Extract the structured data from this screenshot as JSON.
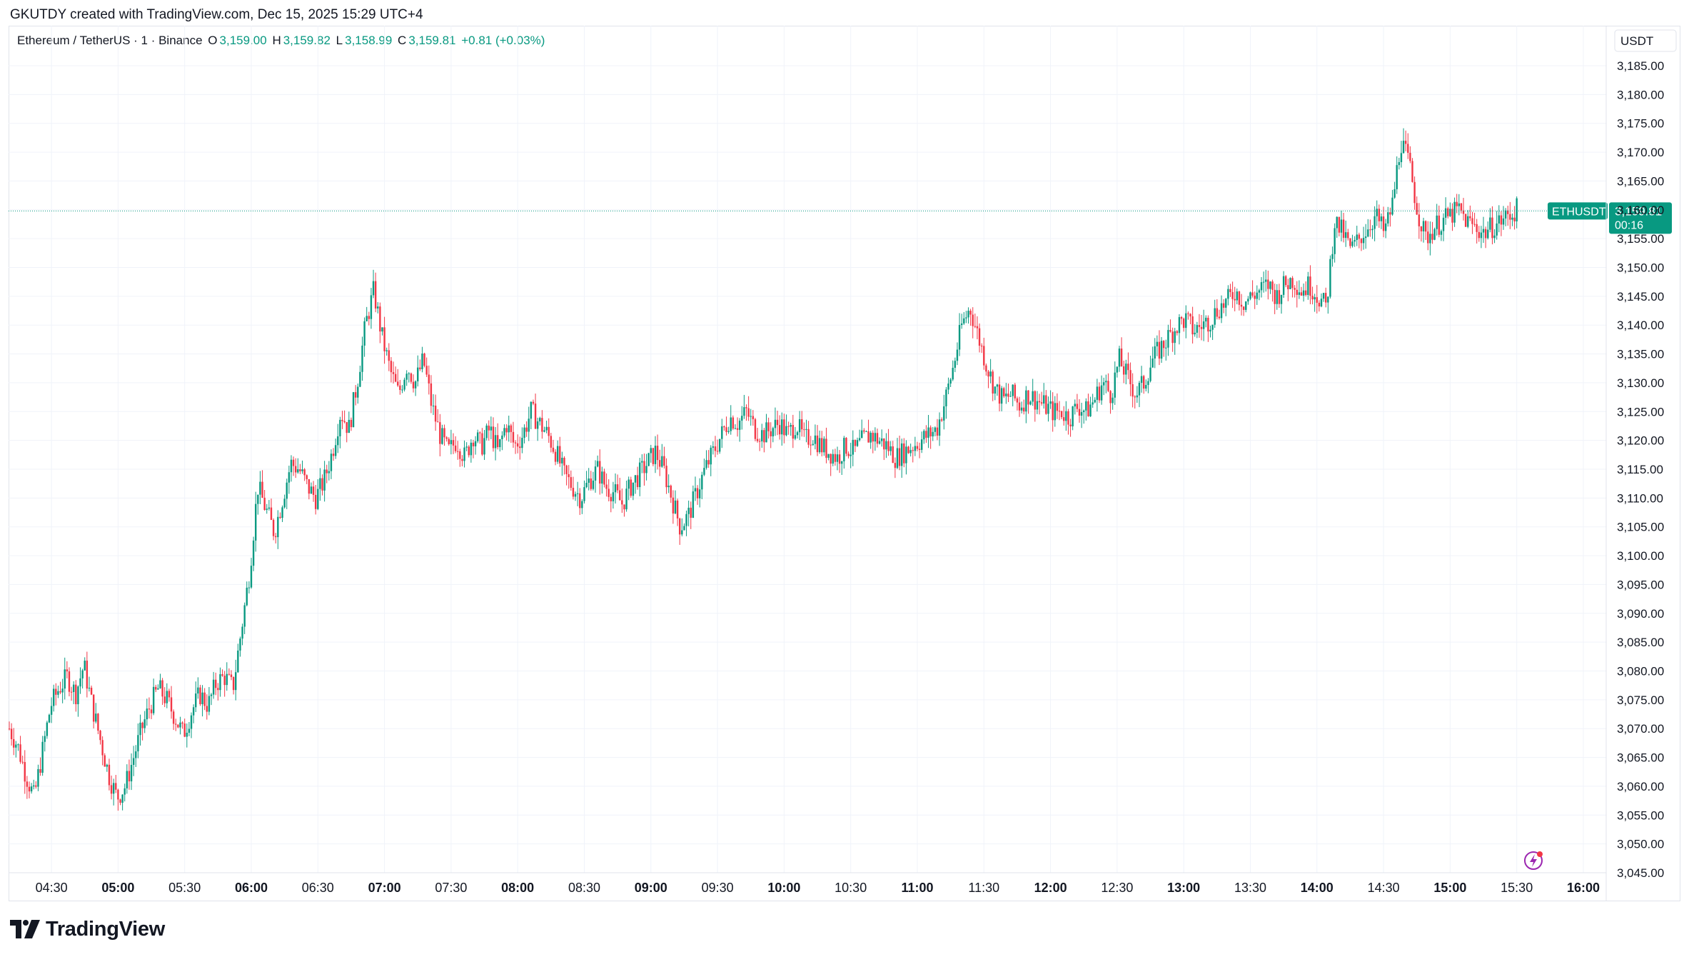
{
  "header": {
    "credit": "GKUTDY created with TradingView.com, Dec 15, 2025 15:29 UTC+4"
  },
  "legend": {
    "symbol": "Ethereum / TetherUS · 1 · Binance",
    "open_label": "O",
    "open": "3,159.00",
    "high_label": "H",
    "high": "3,159.82",
    "low_label": "L",
    "low": "3,158.99",
    "close_label": "C",
    "close": "3,159.81",
    "change": "+0.81 (+0.03%)"
  },
  "price_scale": {
    "currency": "USDT"
  },
  "last_price": {
    "ticker": "ETHUSDT",
    "price": "3,159.81",
    "countdown": "00:16"
  },
  "brand": {
    "name": "TradingView"
  },
  "colors": {
    "up": "#089981",
    "down": "#f23645",
    "grid": "#f0f3fa",
    "axis_text": "#131722"
  },
  "chart_data": {
    "type": "candlestick",
    "ylim": [
      3045,
      3190
    ],
    "y_ticks": [
      3045,
      3050,
      3055,
      3060,
      3065,
      3070,
      3075,
      3080,
      3085,
      3090,
      3095,
      3100,
      3105,
      3110,
      3115,
      3120,
      3125,
      3130,
      3135,
      3140,
      3145,
      3150,
      3155,
      3160,
      3165,
      3170,
      3175,
      3180,
      3185
    ],
    "y_tick_labels": [
      "3,045.00",
      "3,050.00",
      "3,055.00",
      "3,060.00",
      "3,065.00",
      "3,070.00",
      "3,075.00",
      "3,080.00",
      "3,085.00",
      "3,090.00",
      "3,095.00",
      "3,100.00",
      "3,105.00",
      "3,110.00",
      "3,115.00",
      "3,120.00",
      "3,125.00",
      "3,130.00",
      "3,135.00",
      "3,140.00",
      "3,145.00",
      "3,150.00",
      "3,155.00",
      "3,160.00",
      "3,165.00",
      "3,170.00",
      "3,175.00",
      "3,180.00",
      "3,185.00"
    ],
    "x_start": "04:11",
    "x_ticks": [
      {
        "label": "04:30",
        "minute": 19,
        "bold": false
      },
      {
        "label": "05:00",
        "minute": 49,
        "bold": true
      },
      {
        "label": "05:30",
        "minute": 79,
        "bold": false
      },
      {
        "label": "06:00",
        "minute": 109,
        "bold": true
      },
      {
        "label": "06:30",
        "minute": 139,
        "bold": false
      },
      {
        "label": "07:00",
        "minute": 169,
        "bold": true
      },
      {
        "label": "07:30",
        "minute": 199,
        "bold": false
      },
      {
        "label": "08:00",
        "minute": 229,
        "bold": true
      },
      {
        "label": "08:30",
        "minute": 259,
        "bold": false
      },
      {
        "label": "09:00",
        "minute": 289,
        "bold": true
      },
      {
        "label": "09:30",
        "minute": 319,
        "bold": false
      },
      {
        "label": "10:00",
        "minute": 349,
        "bold": true
      },
      {
        "label": "10:30",
        "minute": 379,
        "bold": false
      },
      {
        "label": "11:00",
        "minute": 409,
        "bold": true
      },
      {
        "label": "11:30",
        "minute": 439,
        "bold": false
      },
      {
        "label": "12:00",
        "minute": 469,
        "bold": true
      },
      {
        "label": "12:30",
        "minute": 499,
        "bold": false
      },
      {
        "label": "13:00",
        "minute": 529,
        "bold": true
      },
      {
        "label": "13:30",
        "minute": 559,
        "bold": false
      },
      {
        "label": "14:00",
        "minute": 589,
        "bold": true
      },
      {
        "label": "14:30",
        "minute": 619,
        "bold": false
      },
      {
        "label": "15:00",
        "minute": 649,
        "bold": true
      },
      {
        "label": "15:30",
        "minute": 679,
        "bold": false
      },
      {
        "label": "16:00",
        "minute": 709,
        "bold": true
      }
    ],
    "closes": [
      3070,
      3067,
      3062,
      3058,
      3066,
      3074,
      3077,
      3079,
      3076,
      3081,
      3074,
      3068,
      3062,
      3058,
      3060,
      3065,
      3070,
      3074,
      3077,
      3075,
      3072,
      3069,
      3073,
      3076,
      3074,
      3078,
      3079,
      3077,
      3087,
      3097,
      3112,
      3108,
      3104,
      3110,
      3116,
      3115,
      3112,
      3110,
      3113,
      3118,
      3125,
      3122,
      3130,
      3140,
      3146,
      3138,
      3132,
      3128,
      3133,
      3130,
      3134,
      3126,
      3121,
      3118,
      3120,
      3117,
      3121,
      3119,
      3122,
      3118,
      3123,
      3119,
      3121,
      3125,
      3123,
      3121,
      3118,
      3114,
      3112,
      3110,
      3113,
      3115,
      3112,
      3111,
      3109,
      3112,
      3114,
      3116,
      3118,
      3115,
      3110,
      3105,
      3107,
      3111,
      3115,
      3118,
      3121,
      3124,
      3123,
      3125,
      3122,
      3121,
      3122,
      3123,
      3121,
      3123,
      3120,
      3121,
      3119,
      3118,
      3117,
      3119,
      3118,
      3120,
      3121,
      3120,
      3119,
      3117,
      3118,
      3119,
      3120,
      3121,
      3122,
      3127,
      3133,
      3140,
      3143,
      3138,
      3133,
      3129,
      3127,
      3128,
      3126,
      3128,
      3127,
      3126,
      3125,
      3125,
      3124,
      3126,
      3125,
      3127,
      3130,
      3128,
      3134,
      3131,
      3128,
      3130,
      3134,
      3136,
      3138,
      3140,
      3141,
      3139,
      3140,
      3141,
      3143,
      3144,
      3146,
      3144,
      3145,
      3146,
      3147,
      3145,
      3147,
      3148,
      3146,
      3147,
      3145,
      3143,
      3158,
      3156,
      3153,
      3155,
      3157,
      3159,
      3156,
      3161,
      3172,
      3168,
      3160,
      3155,
      3157,
      3158,
      3159,
      3160,
      3158,
      3157,
      3156,
      3157,
      3158,
      3159,
      3160
    ]
  }
}
